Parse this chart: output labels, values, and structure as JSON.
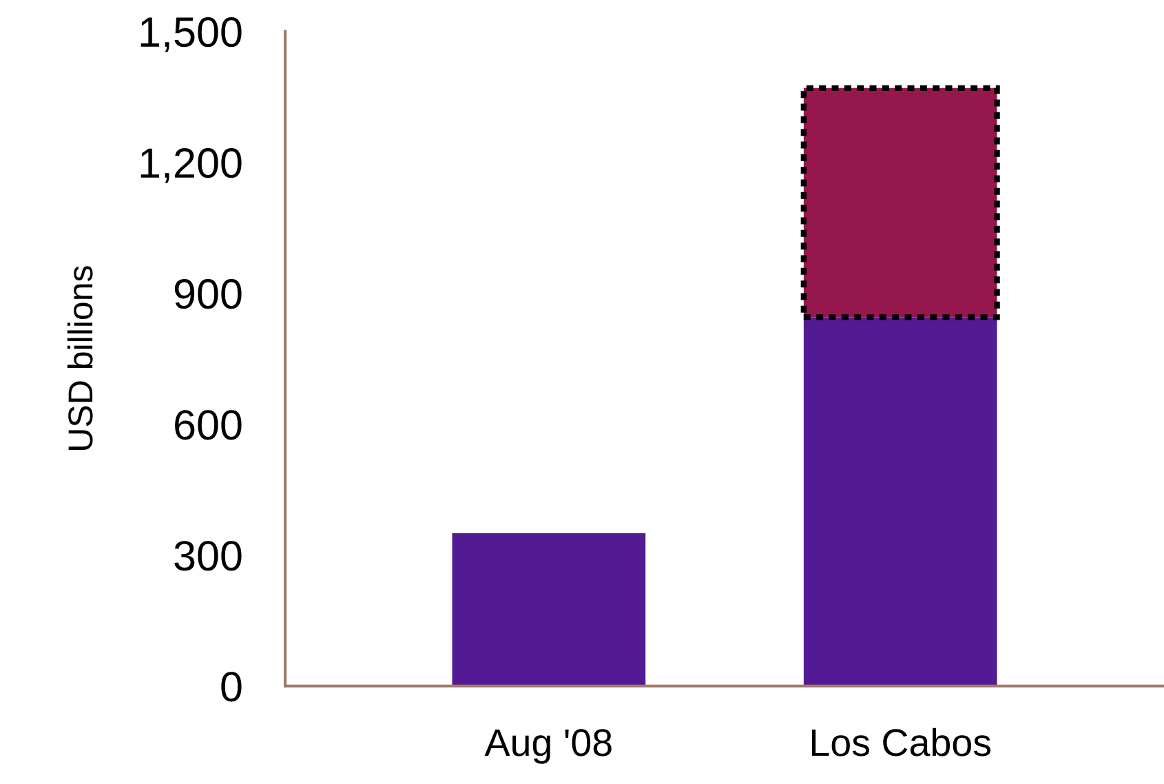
{
  "chart_data": {
    "type": "bar",
    "stacked": true,
    "ylabel": "USD billions",
    "categories": [
      "Aug '08",
      "Los Cabos"
    ],
    "series": [
      {
        "color": "#521b93",
        "values": [
          350,
          845
        ]
      },
      {
        "color": "#95174e",
        "values": [
          null,
          525
        ],
        "line_style": "dashed"
      }
    ],
    "ylim": [
      0,
      1500
    ],
    "yticks": [
      0,
      300,
      600,
      900,
      {
        "value": 1200,
        "label": "1,200"
      },
      {
        "value": 1500,
        "label": "1,500"
      }
    ],
    "grid": false,
    "legend": false
  }
}
